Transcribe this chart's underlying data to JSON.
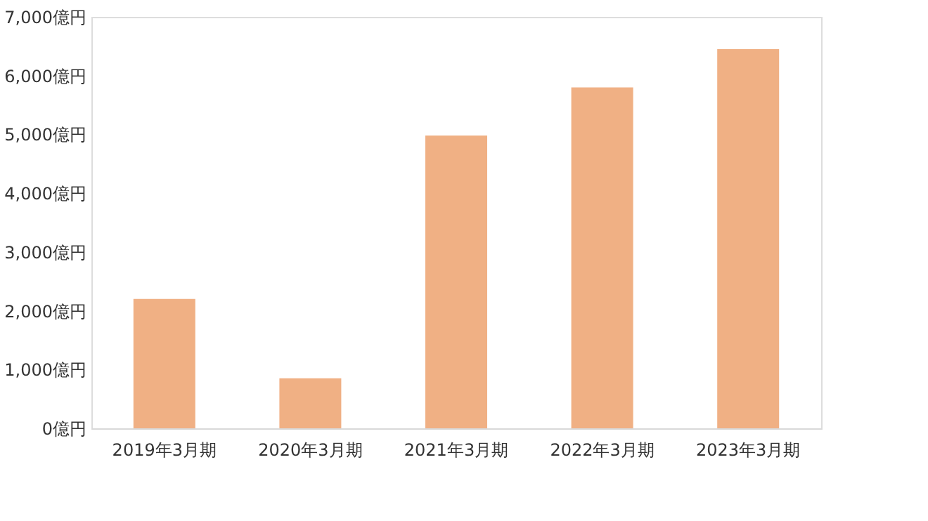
{
  "chart_data": {
    "type": "bar",
    "categories": [
      "2019年3月期",
      "2020年3月期",
      "2021年3月期",
      "2022年3月期",
      "2023年3月期"
    ],
    "values": [
      2200,
      850,
      4980,
      5800,
      6450
    ],
    "color": "#f0b084",
    "ylim": [
      0,
      7000
    ],
    "yticks": [
      {
        "value": 0,
        "label": "0億円"
      },
      {
        "value": 1000,
        "label": "1,000億円"
      },
      {
        "value": 2000,
        "label": "2,000億円"
      },
      {
        "value": 3000,
        "label": "3,000億円"
      },
      {
        "value": 4000,
        "label": "4,000億円"
      },
      {
        "value": 5000,
        "label": "5,000億円"
      },
      {
        "value": 6000,
        "label": "6,000億円"
      },
      {
        "value": 7000,
        "label": "7,000億円"
      }
    ],
    "grid": false
  }
}
